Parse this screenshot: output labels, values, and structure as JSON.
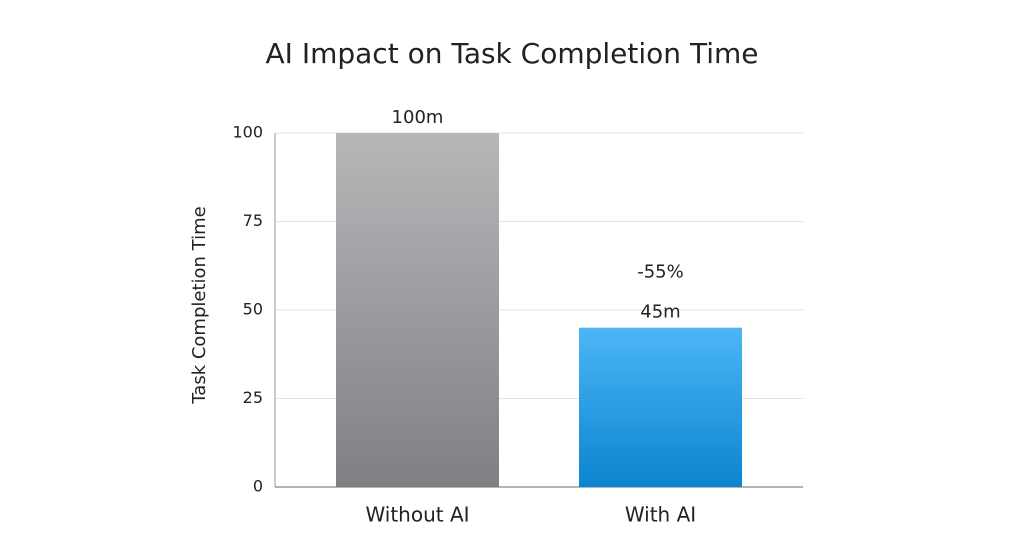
{
  "chart_data": {
    "type": "bar",
    "title": "AI Impact on Task Completion Time",
    "y_label": "Task Completion Time",
    "categories": [
      "Without AI",
      "With AI"
    ],
    "values": [
      100,
      45
    ],
    "value_labels": [
      "100m",
      "45m"
    ],
    "annotation": "-55%",
    "gradients": [
      {
        "top": "#b5b7b9",
        "bottom": "#7e8083"
      },
      {
        "top": "#4cb6f6",
        "bottom": "#0b84cf"
      }
    ],
    "ylim": [
      0,
      100
    ],
    "yticks": [
      0,
      25,
      50,
      75,
      100
    ],
    "grid": true
  }
}
